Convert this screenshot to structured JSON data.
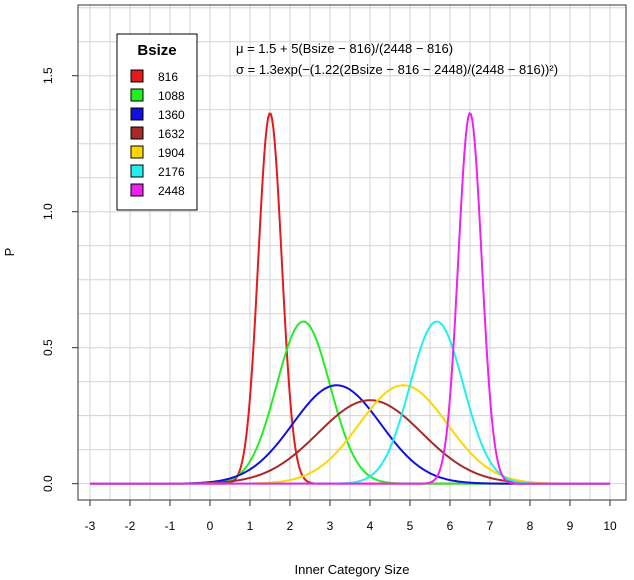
{
  "chart_data": {
    "type": "line",
    "title": "",
    "xlabel": "Inner Category Size",
    "ylabel": "P",
    "xlim": [
      -3.3,
      10.4
    ],
    "ylim": [
      -0.06,
      1.76
    ],
    "x_ticks": [
      -3,
      -2,
      -1,
      0,
      1,
      2,
      3,
      4,
      5,
      6,
      7,
      8,
      9,
      10
    ],
    "x_tick_labels": [
      "-3",
      "-2",
      "-1",
      "0",
      "1",
      "2",
      "3",
      "4",
      "5",
      "6",
      "7",
      "8",
      "9",
      "10"
    ],
    "y_ticks": [
      0,
      0.5,
      1,
      1.5
    ],
    "y_tick_labels": [
      "0.0",
      "0.5",
      "1.0",
      "1.5"
    ],
    "grid": true,
    "legend": {
      "title": "Bsize",
      "position": "top-left"
    },
    "annotation_lines": [
      "μ = 1.5 + 5(Bsize − 816)/(2448 − 816)",
      "σ = 1.3exp(−(1.22(2Bsize − 816 − 2448)/(2448 − 816))²)"
    ],
    "x_range_of_curves": [
      -3,
      10
    ],
    "series": [
      {
        "name": "816",
        "color": "#e41a1c",
        "mu": 1.5,
        "sigma": 0.2928,
        "peak": 1.3626
      },
      {
        "name": "1088",
        "color": "#22ee22",
        "mu": 2.333,
        "sigma": 0.6693,
        "peak": 0.5961
      },
      {
        "name": "1360",
        "color": "#1111dd",
        "mu": 3.167,
        "sigma": 1.1026,
        "peak": 0.3618
      },
      {
        "name": "1632",
        "color": "#a52a2a",
        "mu": 4.0,
        "sigma": 1.3,
        "peak": 0.3069
      },
      {
        "name": "1904",
        "color": "#ffd700",
        "mu": 4.833,
        "sigma": 1.1026,
        "peak": 0.3618
      },
      {
        "name": "2176",
        "color": "#22eeee",
        "mu": 5.667,
        "sigma": 0.6693,
        "peak": 0.5961
      },
      {
        "name": "2448",
        "color": "#ee22ee",
        "mu": 6.5,
        "sigma": 0.2928,
        "peak": 1.3626
      }
    ]
  }
}
